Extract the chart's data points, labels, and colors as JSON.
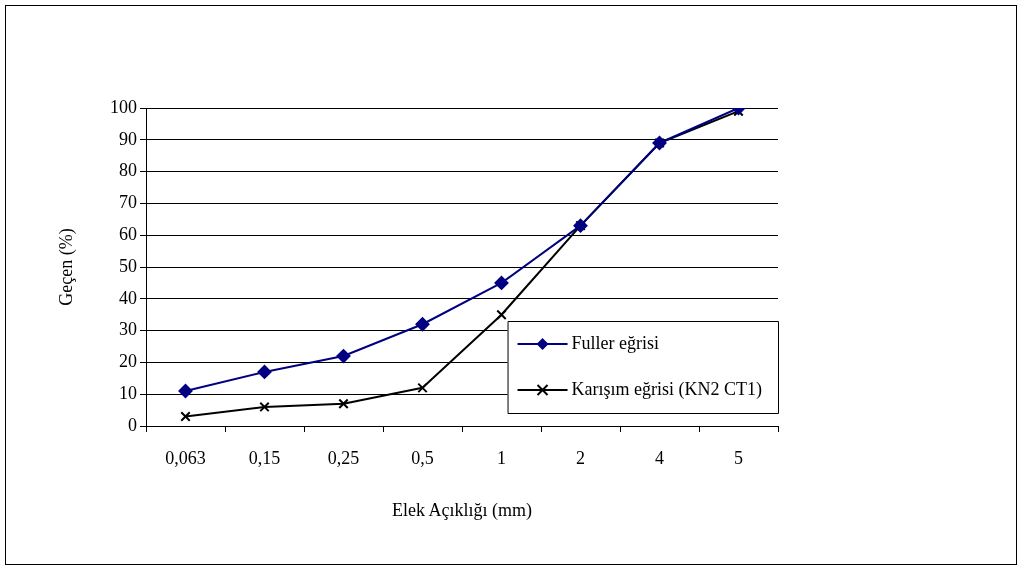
{
  "chart_data": {
    "type": "line",
    "xlabel": "Elek Açıklığı (mm)",
    "ylabel": "Geçen (%)",
    "categories": [
      "0,063",
      "0,15",
      "0,25",
      "0,5",
      "1",
      "2",
      "4",
      "5"
    ],
    "series": [
      {
        "name": "Fuller eğrisi",
        "color": "#000080",
        "marker": "diamond",
        "values": [
          11,
          17,
          22,
          32,
          45,
          63,
          89,
          100
        ]
      },
      {
        "name": "Karışım eğrisi (KN2 CT1)",
        "color": "#000000",
        "marker": "cross",
        "values": [
          3,
          6,
          7,
          12,
          35,
          63,
          89,
          99
        ]
      }
    ],
    "ylim": [
      0,
      100
    ],
    "yticks": [
      0,
      10,
      20,
      30,
      40,
      50,
      60,
      70,
      80,
      90,
      100
    ],
    "grid": "y",
    "legend": "bottom right",
    "line_style": "solid"
  }
}
